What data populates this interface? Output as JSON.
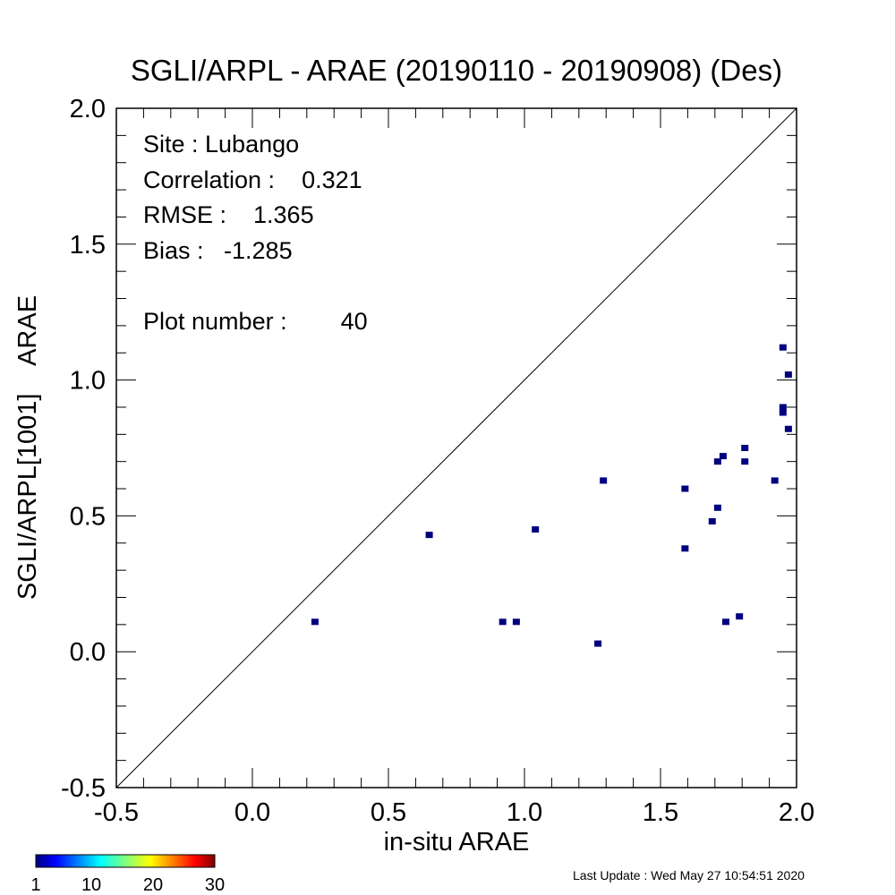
{
  "chart_data": {
    "type": "scatter",
    "title": "SGLI/ARPL - ARAE (20190110 - 20190908) (Des)",
    "xlabel": "in-situ ARAE",
    "ylabel": "SGLI/ARPL[1001]    ARAE",
    "xlim": [
      -0.5,
      2.0
    ],
    "ylim": [
      -0.5,
      2.0
    ],
    "x_ticks": [
      "-0.5",
      "0.0",
      "0.5",
      "1.0",
      "1.5",
      "2.0"
    ],
    "y_ticks": [
      "-0.5",
      "0.0",
      "0.5",
      "1.0",
      "1.5",
      "2.0"
    ],
    "reference_line": "1:1",
    "marker_color": "#00007f",
    "points": [
      {
        "x": 0.23,
        "y": 0.11
      },
      {
        "x": 0.65,
        "y": 0.43
      },
      {
        "x": 0.92,
        "y": 0.11
      },
      {
        "x": 0.97,
        "y": 0.11
      },
      {
        "x": 1.04,
        "y": 0.45
      },
      {
        "x": 1.27,
        "y": 0.03
      },
      {
        "x": 1.29,
        "y": 0.63
      },
      {
        "x": 1.59,
        "y": 0.6
      },
      {
        "x": 1.59,
        "y": 0.38
      },
      {
        "x": 1.69,
        "y": 0.48
      },
      {
        "x": 1.71,
        "y": 0.53
      },
      {
        "x": 1.71,
        "y": 0.7
      },
      {
        "x": 1.73,
        "y": 0.72
      },
      {
        "x": 1.74,
        "y": 0.11
      },
      {
        "x": 1.79,
        "y": 0.13
      },
      {
        "x": 1.81,
        "y": 0.75
      },
      {
        "x": 1.81,
        "y": 0.7
      },
      {
        "x": 1.92,
        "y": 0.63
      },
      {
        "x": 1.95,
        "y": 1.12
      },
      {
        "x": 1.95,
        "y": 0.9
      },
      {
        "x": 1.95,
        "y": 0.88
      },
      {
        "x": 1.97,
        "y": 1.02
      },
      {
        "x": 1.97,
        "y": 0.82
      }
    ]
  },
  "stats": {
    "site": "Site : Lubango",
    "correlation": "Correlation :    0.321",
    "rmse": "RMSE :    1.365",
    "bias": "Bias :   -1.285",
    "plot_number": "Plot number :        40"
  },
  "colorbar": {
    "ticks": [
      "1",
      "10",
      "20",
      "30"
    ]
  },
  "footer": {
    "last_update": "Last Update : Wed May 27 10:54:51 2020"
  }
}
